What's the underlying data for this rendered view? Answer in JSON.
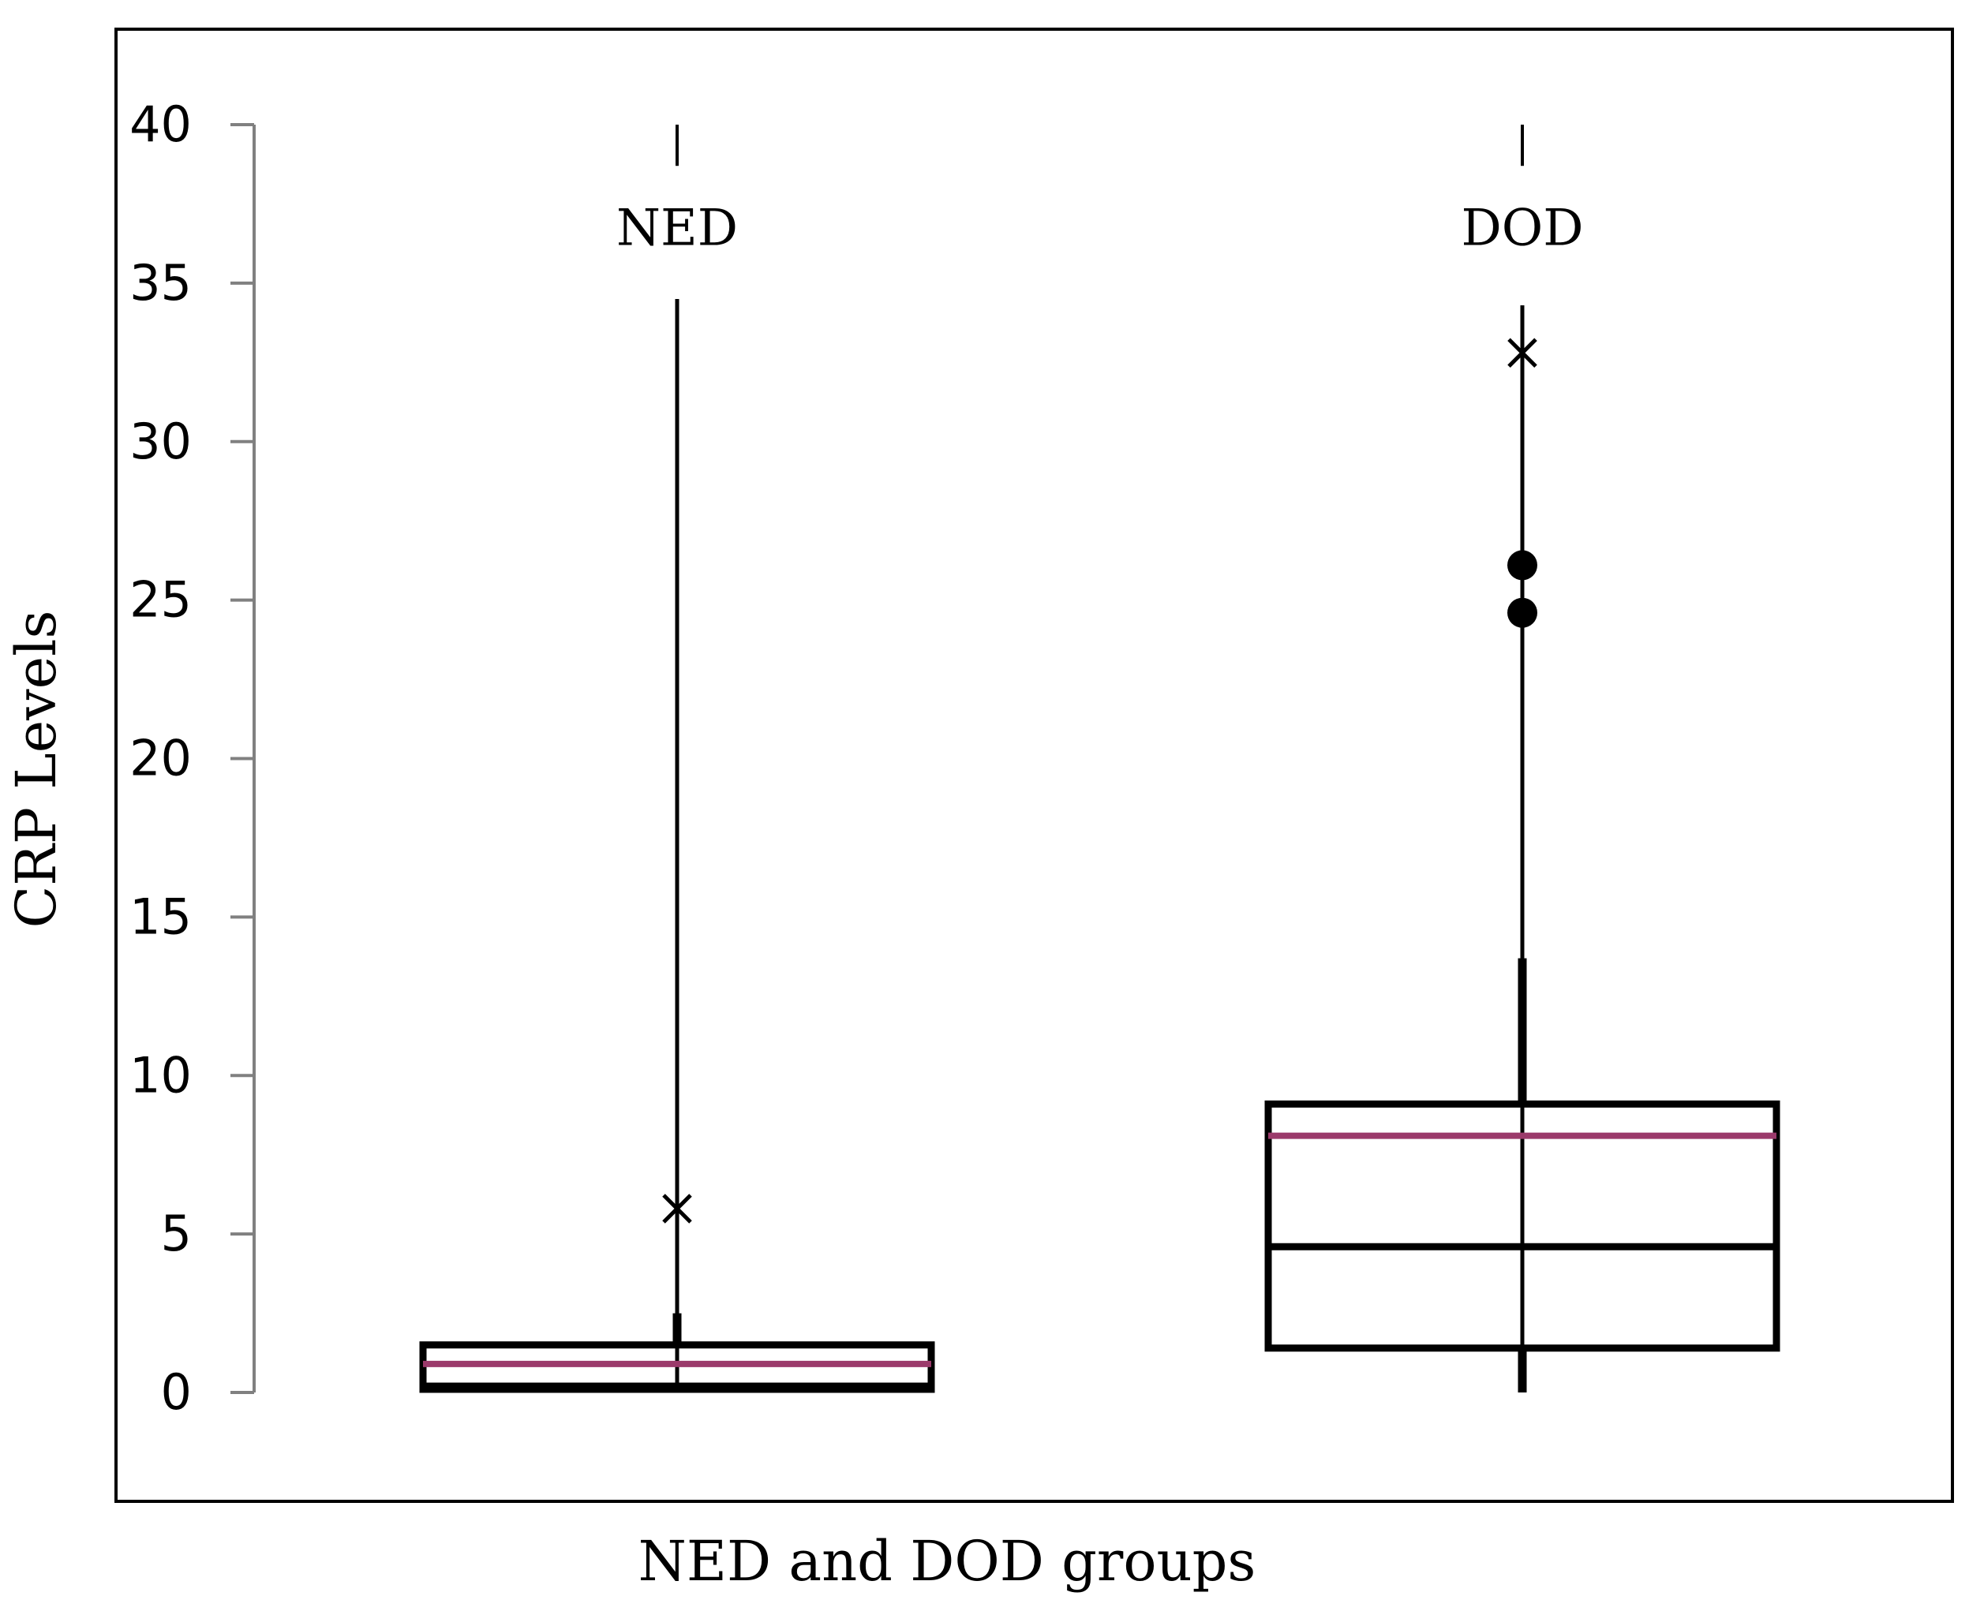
{
  "chart_data": {
    "type": "box",
    "xlabel": "NED and DOD groups",
    "ylabel": "CRP Levels",
    "ylim": [
      0,
      40
    ],
    "yticks": [
      0,
      5,
      10,
      15,
      20,
      25,
      30,
      35,
      40
    ],
    "grid": false,
    "legend": "none",
    "mean_color": "#9b3a6b",
    "groups": [
      {
        "name": "NED",
        "min": 0,
        "q1": 0.1,
        "median": 0.2,
        "mean": 0.9,
        "q3": 1.5,
        "whisker_thick_top": 2.5,
        "whisker_high": 34.5,
        "dash_top": [
          38.7,
          40
        ],
        "outliers": [],
        "x_markers": [
          5.8
        ]
      },
      {
        "name": "DOD",
        "min": 0,
        "q1": 1.4,
        "median": 4.6,
        "mean": 8.1,
        "q3": 9.1,
        "whisker_thick_top": 13.7,
        "whisker_high": 34.3,
        "dash_top": [
          38.7,
          40
        ],
        "outliers": [
          24.6,
          26.1
        ],
        "x_markers": [
          32.8
        ]
      }
    ]
  }
}
